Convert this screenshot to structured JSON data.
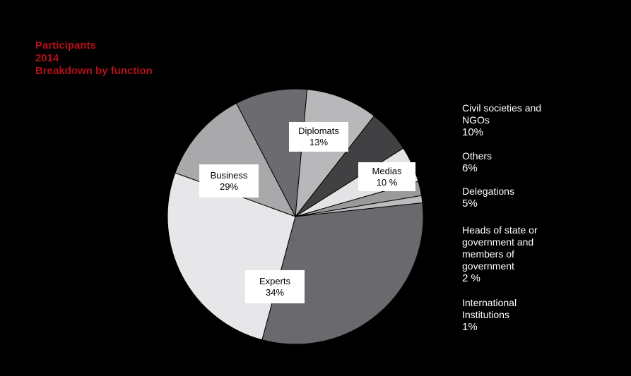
{
  "chart_data": {
    "type": "pie",
    "title": "Participants",
    "subtitle_lines": [
      "2014",
      "Breakdown by function"
    ],
    "slices": [
      {
        "label": "Diplomats",
        "value": 13,
        "display": "13%",
        "color": "#a9a9ab"
      },
      {
        "label": "Medias",
        "value": 10,
        "display": "10 %",
        "color": "#6c6c70"
      },
      {
        "label": "Civil societies and NGOs",
        "value": 10,
        "display": "10%",
        "color": "#b8b8ba"
      },
      {
        "label": "Others",
        "value": 6,
        "display": "6%",
        "color": "#414143"
      },
      {
        "label": "Delegations",
        "value": 5,
        "display": "5%",
        "color": "#e3e3e5"
      },
      {
        "label": "Heads of state or government and members of government",
        "value": 2,
        "display": "2 %",
        "color": "#9a9a9c"
      },
      {
        "label": "International Institutions",
        "value": 1,
        "display": "1%",
        "color": "#bdbdbf"
      },
      {
        "label": "Experts",
        "value": 34,
        "display": "34%",
        "color": "#6a6a6e"
      },
      {
        "label": "Business",
        "value": 29,
        "display": "29%",
        "color": "#e7e7e9"
      }
    ],
    "callouts": [
      {
        "label": "Diplomats",
        "value": "13%"
      },
      {
        "label": "Medias",
        "value": "10 %"
      },
      {
        "label": "Business",
        "value": "29%"
      },
      {
        "label": "Experts",
        "value": "34%"
      }
    ],
    "legend": [
      {
        "lines": [
          "Civil societies and",
          "NGOs"
        ],
        "value": "10%"
      },
      {
        "lines": [
          "Others"
        ],
        "value": "6%"
      },
      {
        "lines": [
          "Delegations"
        ],
        "value": "5%"
      },
      {
        "lines": [
          "Heads of state or",
          "government and",
          "members of",
          "government"
        ],
        "value": "2 %"
      },
      {
        "lines": [
          "International",
          "Institutions"
        ],
        "value": "1%"
      }
    ],
    "legend_placement": "right"
  }
}
